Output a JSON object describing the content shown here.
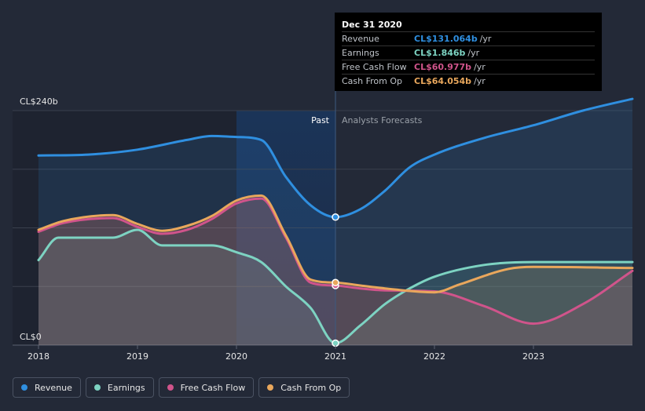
{
  "chart_data": {
    "type": "area",
    "currency_prefix": "CL$",
    "y_labels": {
      "top": "CL$240b",
      "bottom": "CL$0"
    },
    "ylim": [
      0,
      240
    ],
    "xlim": [
      2018,
      2024
    ],
    "x_ticks": [
      "2018",
      "2019",
      "2020",
      "2021",
      "2022",
      "2023"
    ],
    "region_labels": {
      "past": "Past",
      "forecast": "Analysts Forecasts"
    },
    "highlight_start": 2020.0,
    "divider": 2021.0,
    "series": [
      {
        "name": "Revenue",
        "color": "#2f8fe0",
        "points": [
          [
            2018.0,
            194
          ],
          [
            2018.5,
            195
          ],
          [
            2019.0,
            200
          ],
          [
            2019.5,
            210
          ],
          [
            2019.75,
            214
          ],
          [
            2020.0,
            213
          ],
          [
            2020.25,
            210
          ],
          [
            2020.5,
            172
          ],
          [
            2020.75,
            143
          ],
          [
            2021.0,
            131
          ],
          [
            2021.25,
            139
          ],
          [
            2021.5,
            158
          ],
          [
            2021.75,
            182
          ],
          [
            2022.0,
            195
          ],
          [
            2022.5,
            212
          ],
          [
            2023.0,
            225
          ],
          [
            2023.5,
            240
          ],
          [
            2024.0,
            252
          ]
        ]
      },
      {
        "name": "Earnings",
        "color": "#7dd3c2",
        "points": [
          [
            2018.0,
            87
          ],
          [
            2018.2,
            110
          ],
          [
            2018.75,
            110
          ],
          [
            2019.0,
            118
          ],
          [
            2019.25,
            102
          ],
          [
            2019.75,
            102
          ],
          [
            2020.0,
            95
          ],
          [
            2020.25,
            85
          ],
          [
            2020.5,
            60
          ],
          [
            2020.75,
            38
          ],
          [
            2021.0,
            2
          ],
          [
            2021.25,
            20
          ],
          [
            2021.5,
            42
          ],
          [
            2021.75,
            58
          ],
          [
            2022.0,
            70
          ],
          [
            2022.5,
            82
          ],
          [
            2023.0,
            85
          ],
          [
            2024.0,
            85
          ]
        ]
      },
      {
        "name": "Free Cash Flow",
        "color": "#d0548b",
        "points": [
          [
            2018.0,
            116
          ],
          [
            2018.25,
            125
          ],
          [
            2018.75,
            130
          ],
          [
            2019.0,
            121
          ],
          [
            2019.25,
            114
          ],
          [
            2019.5,
            118
          ],
          [
            2019.75,
            129
          ],
          [
            2020.0,
            145
          ],
          [
            2020.25,
            150
          ],
          [
            2020.5,
            110
          ],
          [
            2020.75,
            64
          ],
          [
            2021.0,
            61
          ],
          [
            2021.25,
            58
          ],
          [
            2021.5,
            56
          ],
          [
            2022.0,
            55
          ],
          [
            2022.5,
            40
          ],
          [
            2023.0,
            22
          ],
          [
            2023.5,
            42
          ],
          [
            2024.0,
            76
          ]
        ]
      },
      {
        "name": "Cash From Op",
        "color": "#e9a75c",
        "points": [
          [
            2018.0,
            118
          ],
          [
            2018.25,
            127
          ],
          [
            2018.75,
            133
          ],
          [
            2019.0,
            124
          ],
          [
            2019.25,
            117
          ],
          [
            2019.5,
            122
          ],
          [
            2019.75,
            132
          ],
          [
            2020.0,
            148
          ],
          [
            2020.25,
            153
          ],
          [
            2020.5,
            112
          ],
          [
            2020.75,
            67
          ],
          [
            2021.0,
            64
          ],
          [
            2021.25,
            61
          ],
          [
            2021.5,
            58
          ],
          [
            2022.0,
            54
          ],
          [
            2022.25,
            62
          ],
          [
            2022.75,
            78
          ],
          [
            2023.0,
            80
          ],
          [
            2024.0,
            79
          ]
        ]
      }
    ]
  },
  "tooltip": {
    "date": "Dec 31 2020",
    "rows": [
      {
        "label": "Revenue",
        "value": "CL$131.064b",
        "unit": "/yr",
        "color": "#2f8fe0"
      },
      {
        "label": "Earnings",
        "value": "CL$1.846b",
        "unit": "/yr",
        "color": "#7dd3c2"
      },
      {
        "label": "Free Cash Flow",
        "value": "CL$60.977b",
        "unit": "/yr",
        "color": "#d0548b"
      },
      {
        "label": "Cash From Op",
        "value": "CL$64.054b",
        "unit": "/yr",
        "color": "#e9a75c"
      }
    ]
  },
  "legend": [
    {
      "label": "Revenue",
      "color": "#2f8fe0"
    },
    {
      "label": "Earnings",
      "color": "#7dd3c2"
    },
    {
      "label": "Free Cash Flow",
      "color": "#d0548b"
    },
    {
      "label": "Cash From Op",
      "color": "#e9a75c"
    }
  ]
}
